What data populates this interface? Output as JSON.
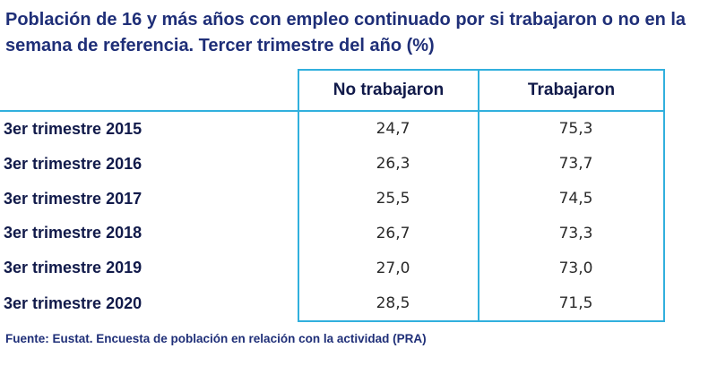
{
  "title": "Población de 16 y más años con empleo continuado por si trabajaron o no en la semana de referencia. Tercer trimestre del año (%)",
  "source": "Fuente: Eustat. Encuesta de población en relación con la actividad (PRA)",
  "chart_data": {
    "type": "table",
    "title": "Población de 16 y más años con empleo continuado por si trabajaron o no en la semana de referencia. Tercer trimestre del año (%)",
    "columns": [
      "",
      "No trabajaron",
      "Trabajaron"
    ],
    "rows": [
      {
        "label": "3er trimestre 2015",
        "no_trabajaron": "24,7",
        "trabajaron": "75,3"
      },
      {
        "label": "3er trimestre 2016",
        "no_trabajaron": "26,3",
        "trabajaron": "73,7"
      },
      {
        "label": "3er trimestre 2017",
        "no_trabajaron": "25,5",
        "trabajaron": "74,5"
      },
      {
        "label": "3er trimestre 2018",
        "no_trabajaron": "26,7",
        "trabajaron": "73,3"
      },
      {
        "label": "3er trimestre 2019",
        "no_trabajaron": "27,0",
        "trabajaron": "73,0"
      },
      {
        "label": "3er trimestre 2020",
        "no_trabajaron": "28,5",
        "trabajaron": "71,5"
      }
    ]
  },
  "colors": {
    "title": "#1f2f78",
    "border": "#31b0dd",
    "header_text": "#111a4a",
    "value_text": "#2a2a2a"
  }
}
